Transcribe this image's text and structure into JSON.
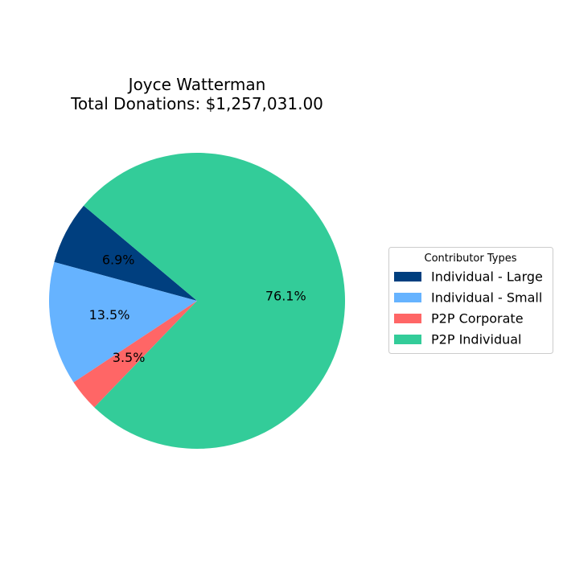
{
  "chart_data": {
    "type": "pie",
    "title": "Joyce Watterman",
    "subtitle": "Total Donations: $1,257,031.00",
    "legend": {
      "title": "Contributor Types",
      "placement": "center-right"
    },
    "slices": [
      {
        "label": "Individual - Large",
        "value": 6.9,
        "pct_label": "6.9%",
        "color": "#003f7f"
      },
      {
        "label": "Individual - Small",
        "value": 13.5,
        "pct_label": "13.5%",
        "color": "#66b3ff"
      },
      {
        "label": "P2P Corporate",
        "value": 3.5,
        "pct_label": "3.5%",
        "color": "#ff6666"
      },
      {
        "label": "P2P Individual",
        "value": 76.1,
        "pct_label": "76.1%",
        "color": "#33cc99"
      }
    ],
    "start_angle_deg": 140,
    "direction": "counterclockwise"
  }
}
